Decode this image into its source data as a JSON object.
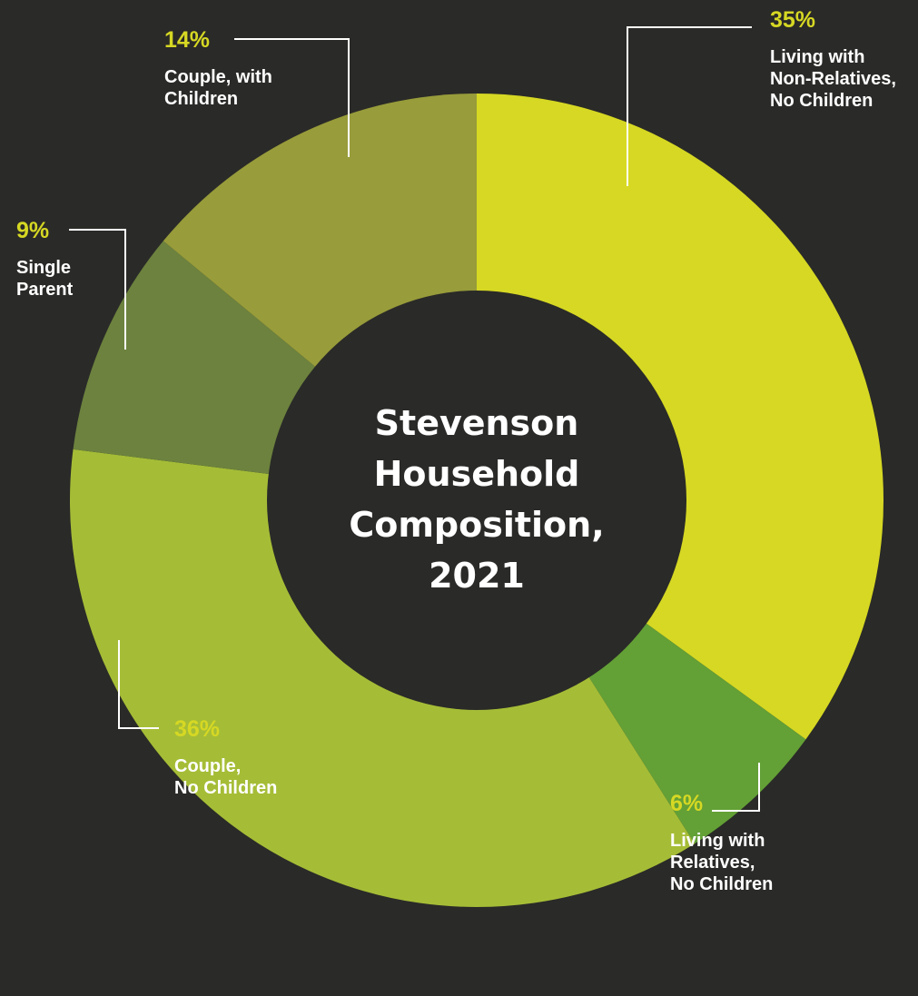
{
  "chart_data": {
    "type": "pie",
    "title_lines": [
      "Stevenson",
      "Household",
      "Composition,",
      "2021"
    ],
    "slices": [
      {
        "label_lines": [
          "Living with",
          "Non-Relatives,",
          "No Children"
        ],
        "value": 35,
        "value_label": "35%",
        "color": "#d6d823"
      },
      {
        "label_lines": [
          "Living with",
          "Relatives,",
          "No Children"
        ],
        "value": 6,
        "value_label": "6%",
        "color": "#63a036"
      },
      {
        "label_lines": [
          "Couple,",
          "No Children"
        ],
        "value": 36,
        "value_label": "36%",
        "color": "#a5bd36"
      },
      {
        "label_lines": [
          "Single",
          "Parent"
        ],
        "value": 9,
        "value_label": "9%",
        "color": "#6c823e"
      },
      {
        "label_lines": [
          "Couple, with",
          "Children"
        ],
        "value": 14,
        "value_label": "14%",
        "color": "#989c3a"
      }
    ],
    "label_color": "#d6d823",
    "legend": "none"
  }
}
